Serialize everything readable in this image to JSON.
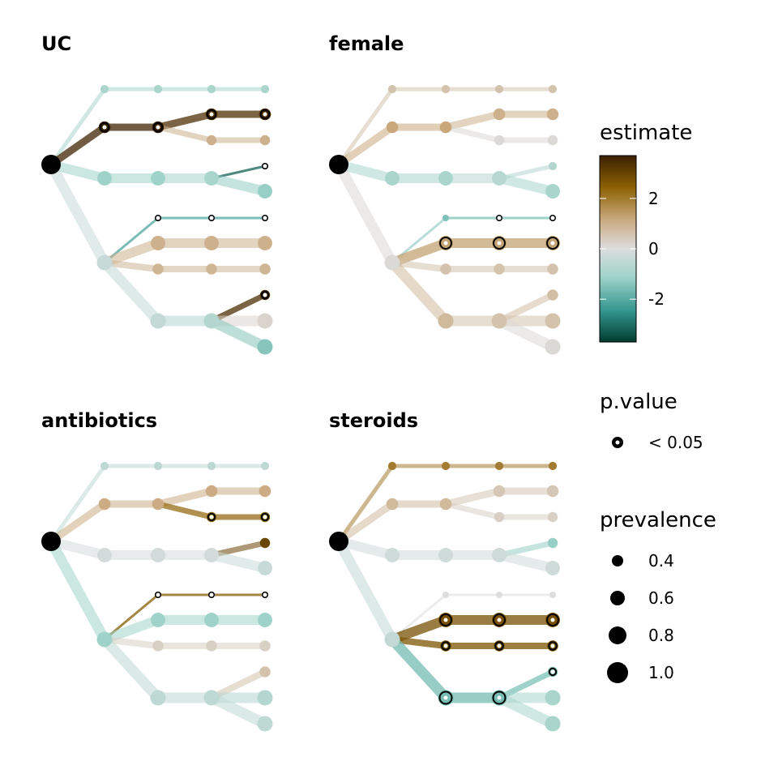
{
  "chart_data": {
    "type": "tree",
    "panels": [
      {
        "title": "UC",
        "nodes": [
          {
            "id": "root",
            "prevalence": 1.0,
            "estimate": null,
            "sig": false
          },
          {
            "id": "a",
            "prevalence": 0.6,
            "estimate": 3.6,
            "sig": true
          },
          {
            "id": "b",
            "prevalence": 0.75,
            "estimate": -1.2,
            "sig": false
          },
          {
            "id": "c",
            "prevalence": 0.8,
            "estimate": -0.4,
            "sig": false
          },
          {
            "id": "a1",
            "prevalence": 0.4,
            "estimate": -1.0,
            "sig": false
          },
          {
            "id": "a2",
            "prevalence": 0.6,
            "estimate": 3.6,
            "sig": true
          },
          {
            "id": "b1",
            "prevalence": 0.75,
            "estimate": -1.2,
            "sig": false
          },
          {
            "id": "c1",
            "prevalence": 0.3,
            "estimate": -2.2,
            "sig": true
          },
          {
            "id": "c2",
            "prevalence": 0.75,
            "estimate": 1.0,
            "sig": false
          },
          {
            "id": "c3",
            "prevalence": 0.55,
            "estimate": 0.9,
            "sig": false
          },
          {
            "id": "d1",
            "prevalence": 0.8,
            "estimate": -0.5,
            "sig": false
          },
          {
            "id": "a1a",
            "prevalence": 0.4,
            "estimate": -1.0,
            "sig": false
          },
          {
            "id": "a2a",
            "prevalence": 0.6,
            "estimate": 3.4,
            "sig": true
          },
          {
            "id": "a2b",
            "prevalence": 0.5,
            "estimate": 1.0,
            "sig": false
          },
          {
            "id": "b1a",
            "prevalence": 0.75,
            "estimate": -1.0,
            "sig": false
          },
          {
            "id": "c1a",
            "prevalence": 0.3,
            "estimate": -2.2,
            "sig": true
          },
          {
            "id": "c2a",
            "prevalence": 0.75,
            "estimate": 1.0,
            "sig": false
          },
          {
            "id": "c3a",
            "prevalence": 0.55,
            "estimate": 0.9,
            "sig": false
          },
          {
            "id": "d1a",
            "prevalence": 0.8,
            "estimate": -0.8,
            "sig": false
          },
          {
            "id": "b1b",
            "prevalence": 0.3,
            "estimate": -3.2,
            "sig": true
          },
          {
            "id": "b1c",
            "prevalence": 0.75,
            "estimate": -1.3,
            "sig": false
          },
          {
            "id": "c1b",
            "prevalence": 0.3,
            "estimate": -2.2,
            "sig": true
          },
          {
            "id": "c2b",
            "prevalence": 0.75,
            "estimate": 1.0,
            "sig": false
          },
          {
            "id": "c3b",
            "prevalence": 0.55,
            "estimate": 0.9,
            "sig": false
          },
          {
            "id": "d1b",
            "prevalence": 0.5,
            "estimate": 3.4,
            "sig": true
          },
          {
            "id": "d1c",
            "prevalence": 0.8,
            "estimate": 0.2,
            "sig": false
          },
          {
            "id": "d1d",
            "prevalence": 0.8,
            "estimate": -1.5,
            "sig": false
          },
          {
            "id": "a1b",
            "prevalence": 0.4,
            "estimate": -1.0,
            "sig": false
          }
        ]
      },
      {
        "title": "female",
        "nodes": [
          {
            "id": "root",
            "prevalence": 1.0,
            "estimate": null,
            "sig": false
          },
          {
            "id": "a",
            "prevalence": 0.6,
            "estimate": 1.2,
            "sig": false
          },
          {
            "id": "b",
            "prevalence": 0.75,
            "estimate": -1.0,
            "sig": false
          },
          {
            "id": "c",
            "prevalence": 0.8,
            "estimate": 0.1,
            "sig": false
          },
          {
            "id": "a1",
            "prevalence": 0.4,
            "estimate": 0.6,
            "sig": false
          },
          {
            "id": "a2",
            "prevalence": 0.6,
            "estimate": 1.2,
            "sig": false
          },
          {
            "id": "b1",
            "prevalence": 0.75,
            "estimate": -1.0,
            "sig": false
          },
          {
            "id": "c1",
            "prevalence": 0.3,
            "estimate": -1.6,
            "sig": false
          },
          {
            "id": "c2",
            "prevalence": 0.75,
            "estimate": 1.3,
            "sig": true
          },
          {
            "id": "c3",
            "prevalence": 0.55,
            "estimate": 0.6,
            "sig": false
          },
          {
            "id": "d1",
            "prevalence": 0.8,
            "estimate": 0.8,
            "sig": false
          },
          {
            "id": "a1a",
            "prevalence": 0.4,
            "estimate": 0.6,
            "sig": false
          },
          {
            "id": "a2a",
            "prevalence": 0.6,
            "estimate": 1.0,
            "sig": false
          },
          {
            "id": "a2b",
            "prevalence": 0.5,
            "estimate": 0.1,
            "sig": false
          },
          {
            "id": "b1a",
            "prevalence": 0.75,
            "estimate": -0.7,
            "sig": false
          },
          {
            "id": "c1a",
            "prevalence": 0.3,
            "estimate": -1.6,
            "sig": true
          },
          {
            "id": "c2a",
            "prevalence": 0.75,
            "estimate": 1.3,
            "sig": true
          },
          {
            "id": "c3a",
            "prevalence": 0.55,
            "estimate": 0.6,
            "sig": false
          },
          {
            "id": "d1a",
            "prevalence": 0.8,
            "estimate": 0.6,
            "sig": false
          },
          {
            "id": "b1b",
            "prevalence": 0.4,
            "estimate": -0.8,
            "sig": false
          },
          {
            "id": "b1c",
            "prevalence": 0.75,
            "estimate": -1.0,
            "sig": false
          },
          {
            "id": "c1b",
            "prevalence": 0.3,
            "estimate": -1.6,
            "sig": true
          },
          {
            "id": "c2b",
            "prevalence": 0.75,
            "estimate": 1.3,
            "sig": true
          },
          {
            "id": "c3b",
            "prevalence": 0.55,
            "estimate": 0.6,
            "sig": false
          },
          {
            "id": "d1b",
            "prevalence": 0.55,
            "estimate": 0.7,
            "sig": false
          },
          {
            "id": "d1c",
            "prevalence": 0.8,
            "estimate": 0.6,
            "sig": false
          },
          {
            "id": "d1d",
            "prevalence": 0.8,
            "estimate": 0.1,
            "sig": false
          },
          {
            "id": "a1b",
            "prevalence": 0.4,
            "estimate": 0.6,
            "sig": false
          }
        ]
      },
      {
        "title": "antibiotics",
        "nodes": [
          {
            "id": "root",
            "prevalence": 1.0,
            "estimate": null,
            "sig": false
          },
          {
            "id": "a",
            "prevalence": 0.6,
            "estimate": 1.1,
            "sig": false
          },
          {
            "id": "b",
            "prevalence": 0.75,
            "estimate": -0.2,
            "sig": false
          },
          {
            "id": "c",
            "prevalence": 0.8,
            "estimate": -1.2,
            "sig": false
          },
          {
            "id": "a1",
            "prevalence": 0.4,
            "estimate": -0.6,
            "sig": false
          },
          {
            "id": "a2",
            "prevalence": 0.6,
            "estimate": 1.1,
            "sig": false
          },
          {
            "id": "b1",
            "prevalence": 0.75,
            "estimate": -0.2,
            "sig": false
          },
          {
            "id": "c1",
            "prevalence": 0.3,
            "estimate": 2.6,
            "sig": true
          },
          {
            "id": "c2",
            "prevalence": 0.75,
            "estimate": -1.2,
            "sig": false
          },
          {
            "id": "c3",
            "prevalence": 0.55,
            "estimate": 0.3,
            "sig": false
          },
          {
            "id": "d1",
            "prevalence": 0.8,
            "estimate": -0.6,
            "sig": false
          },
          {
            "id": "a1a",
            "prevalence": 0.4,
            "estimate": -0.6,
            "sig": false
          },
          {
            "id": "a2a",
            "prevalence": 0.6,
            "estimate": 1.1,
            "sig": false
          },
          {
            "id": "a2b",
            "prevalence": 0.5,
            "estimate": 2.3,
            "sig": true
          },
          {
            "id": "b1a",
            "prevalence": 0.75,
            "estimate": -0.2,
            "sig": false
          },
          {
            "id": "c1a",
            "prevalence": 0.3,
            "estimate": 2.6,
            "sig": true
          },
          {
            "id": "c2a",
            "prevalence": 0.75,
            "estimate": -1.2,
            "sig": false
          },
          {
            "id": "c3a",
            "prevalence": 0.55,
            "estimate": 0.3,
            "sig": false
          },
          {
            "id": "d1a",
            "prevalence": 0.8,
            "estimate": -0.6,
            "sig": false
          },
          {
            "id": "b1b",
            "prevalence": 0.5,
            "estimate": 3.0,
            "sig": false
          },
          {
            "id": "b1c",
            "prevalence": 0.75,
            "estimate": -0.4,
            "sig": false
          },
          {
            "id": "c1b",
            "prevalence": 0.3,
            "estimate": 2.6,
            "sig": true
          },
          {
            "id": "c2b",
            "prevalence": 0.75,
            "estimate": -1.2,
            "sig": false
          },
          {
            "id": "c3b",
            "prevalence": 0.55,
            "estimate": 0.3,
            "sig": false
          },
          {
            "id": "d1b",
            "prevalence": 0.55,
            "estimate": 0.6,
            "sig": false
          },
          {
            "id": "d1c",
            "prevalence": 0.8,
            "estimate": -0.8,
            "sig": false
          },
          {
            "id": "d1d",
            "prevalence": 0.8,
            "estimate": -0.6,
            "sig": false
          },
          {
            "id": "a1b",
            "prevalence": 0.4,
            "estimate": -0.6,
            "sig": false
          }
        ]
      },
      {
        "title": "steroids",
        "nodes": [
          {
            "id": "root",
            "prevalence": 1.0,
            "estimate": null,
            "sig": false
          },
          {
            "id": "a",
            "prevalence": 0.6,
            "estimate": 0.8,
            "sig": false
          },
          {
            "id": "b",
            "prevalence": 0.75,
            "estimate": -0.3,
            "sig": false
          },
          {
            "id": "c",
            "prevalence": 0.8,
            "estimate": -0.5,
            "sig": false
          },
          {
            "id": "a1",
            "prevalence": 0.4,
            "estimate": 2.0,
            "sig": false
          },
          {
            "id": "a2",
            "prevalence": 0.6,
            "estimate": 0.8,
            "sig": false
          },
          {
            "id": "b1",
            "prevalence": 0.75,
            "estimate": -0.3,
            "sig": false
          },
          {
            "id": "c1",
            "prevalence": 0.3,
            "estimate": 0.0,
            "sig": false
          },
          {
            "id": "c2",
            "prevalence": 0.75,
            "estimate": 2.8,
            "sig": true
          },
          {
            "id": "c3",
            "prevalence": 0.55,
            "estimate": 2.7,
            "sig": true
          },
          {
            "id": "d1",
            "prevalence": 0.8,
            "estimate": -1.7,
            "sig": true
          },
          {
            "id": "a1a",
            "prevalence": 0.4,
            "estimate": 2.0,
            "sig": false
          },
          {
            "id": "a2a",
            "prevalence": 0.6,
            "estimate": 0.5,
            "sig": false
          },
          {
            "id": "a2b",
            "prevalence": 0.5,
            "estimate": 0.3,
            "sig": false
          },
          {
            "id": "b1a",
            "prevalence": 0.75,
            "estimate": -0.3,
            "sig": false
          },
          {
            "id": "c1a",
            "prevalence": 0.3,
            "estimate": 0.0,
            "sig": false
          },
          {
            "id": "c2a",
            "prevalence": 0.75,
            "estimate": 2.8,
            "sig": true
          },
          {
            "id": "c3a",
            "prevalence": 0.55,
            "estimate": 2.7,
            "sig": true
          },
          {
            "id": "d1a",
            "prevalence": 0.8,
            "estimate": -1.7,
            "sig": true
          },
          {
            "id": "b1b",
            "prevalence": 0.5,
            "estimate": -1.3,
            "sig": false
          },
          {
            "id": "b1c",
            "prevalence": 0.75,
            "estimate": -0.3,
            "sig": false
          },
          {
            "id": "c1b",
            "prevalence": 0.3,
            "estimate": 0.0,
            "sig": false
          },
          {
            "id": "c2b",
            "prevalence": 0.75,
            "estimate": 2.8,
            "sig": true
          },
          {
            "id": "c3b",
            "prevalence": 0.55,
            "estimate": 2.7,
            "sig": true
          },
          {
            "id": "d1b",
            "prevalence": 0.5,
            "estimate": -1.6,
            "sig": true
          },
          {
            "id": "d1c",
            "prevalence": 0.8,
            "estimate": -1.0,
            "sig": false
          },
          {
            "id": "d1d",
            "prevalence": 0.8,
            "estimate": -1.0,
            "sig": false
          },
          {
            "id": "a1b",
            "prevalence": 0.4,
            "estimate": 2.0,
            "sig": false
          }
        ]
      }
    ],
    "legends": {
      "estimate": {
        "title": "estimate",
        "range": [
          -3.7,
          3.7
        ],
        "ticks": [
          2,
          0,
          -2
        ],
        "tick_labels": [
          "2",
          "0",
          "-2"
        ],
        "colors": [
          "#003c30",
          "#35978f",
          "#80cdc1",
          "#dddddd",
          "#c9a87c",
          "#8c6103",
          "#3b2004"
        ]
      },
      "p_value": {
        "title": "p.value",
        "label": "< 0.05"
      },
      "prevalence": {
        "title": "prevalence",
        "values": [
          0.4,
          0.6,
          0.8,
          1.0
        ],
        "labels": [
          "0.4",
          "0.6",
          "0.8",
          "1.0"
        ]
      }
    }
  }
}
